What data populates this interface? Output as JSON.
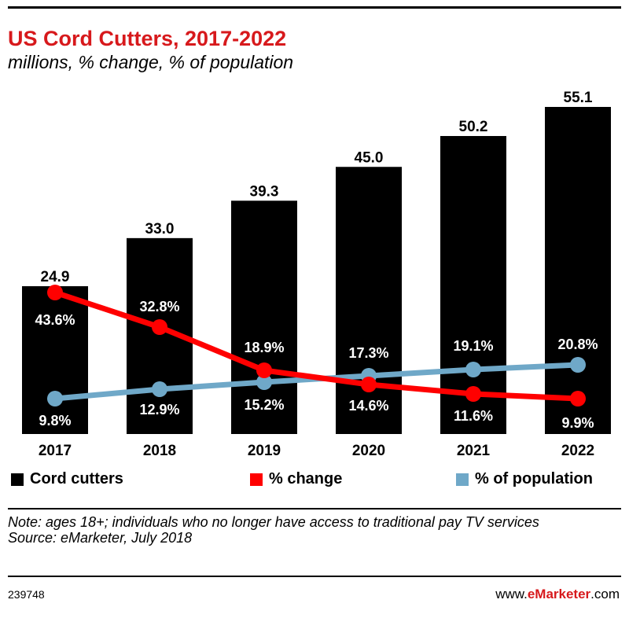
{
  "title": "US Cord Cutters, 2017-2022",
  "subtitle": "millions, % change, % of population",
  "legend": {
    "cord_cutters": "Cord cutters",
    "pct_change": "% change",
    "pct_population": "% of population"
  },
  "note_line1": "Note: ages 18+; individuals who no longer have access to traditional pay TV services",
  "note_line2": "Source: eMarketer, July 2018",
  "chart_id": "239748",
  "brand_prefix": "www.",
  "brand_bold": "eMarketer",
  "brand_suffix": ".com",
  "colors": {
    "title": "#d7191c",
    "bars": "#000000",
    "change": "#ff0000",
    "population": "#6fa8c8"
  },
  "chart_data": {
    "type": "bar",
    "title": "US Cord Cutters, 2017-2022",
    "subtitle": "millions, % change, % of population",
    "categories": [
      "2017",
      "2018",
      "2019",
      "2020",
      "2021",
      "2022"
    ],
    "series": [
      {
        "name": "Cord cutters",
        "type": "bar",
        "values": [
          24.9,
          33.0,
          39.3,
          45.0,
          50.2,
          55.1
        ],
        "labels": [
          "24.9",
          "33.0",
          "39.3",
          "45.0",
          "50.2",
          "55.1"
        ]
      },
      {
        "name": "% change",
        "type": "line",
        "values": [
          43.6,
          32.8,
          18.9,
          14.6,
          11.6,
          9.9
        ],
        "labels": [
          "43.6%",
          "32.8%",
          "18.9%",
          "14.6%",
          "11.6%",
          "9.9%"
        ]
      },
      {
        "name": "% of population",
        "type": "line",
        "values": [
          9.8,
          12.9,
          15.2,
          17.3,
          19.1,
          20.8
        ],
        "labels": [
          "9.8%",
          "12.9%",
          "15.2%",
          "17.3%",
          "19.1%",
          "20.8%"
        ]
      }
    ],
    "legend_position": "bottom",
    "grid": false
  }
}
